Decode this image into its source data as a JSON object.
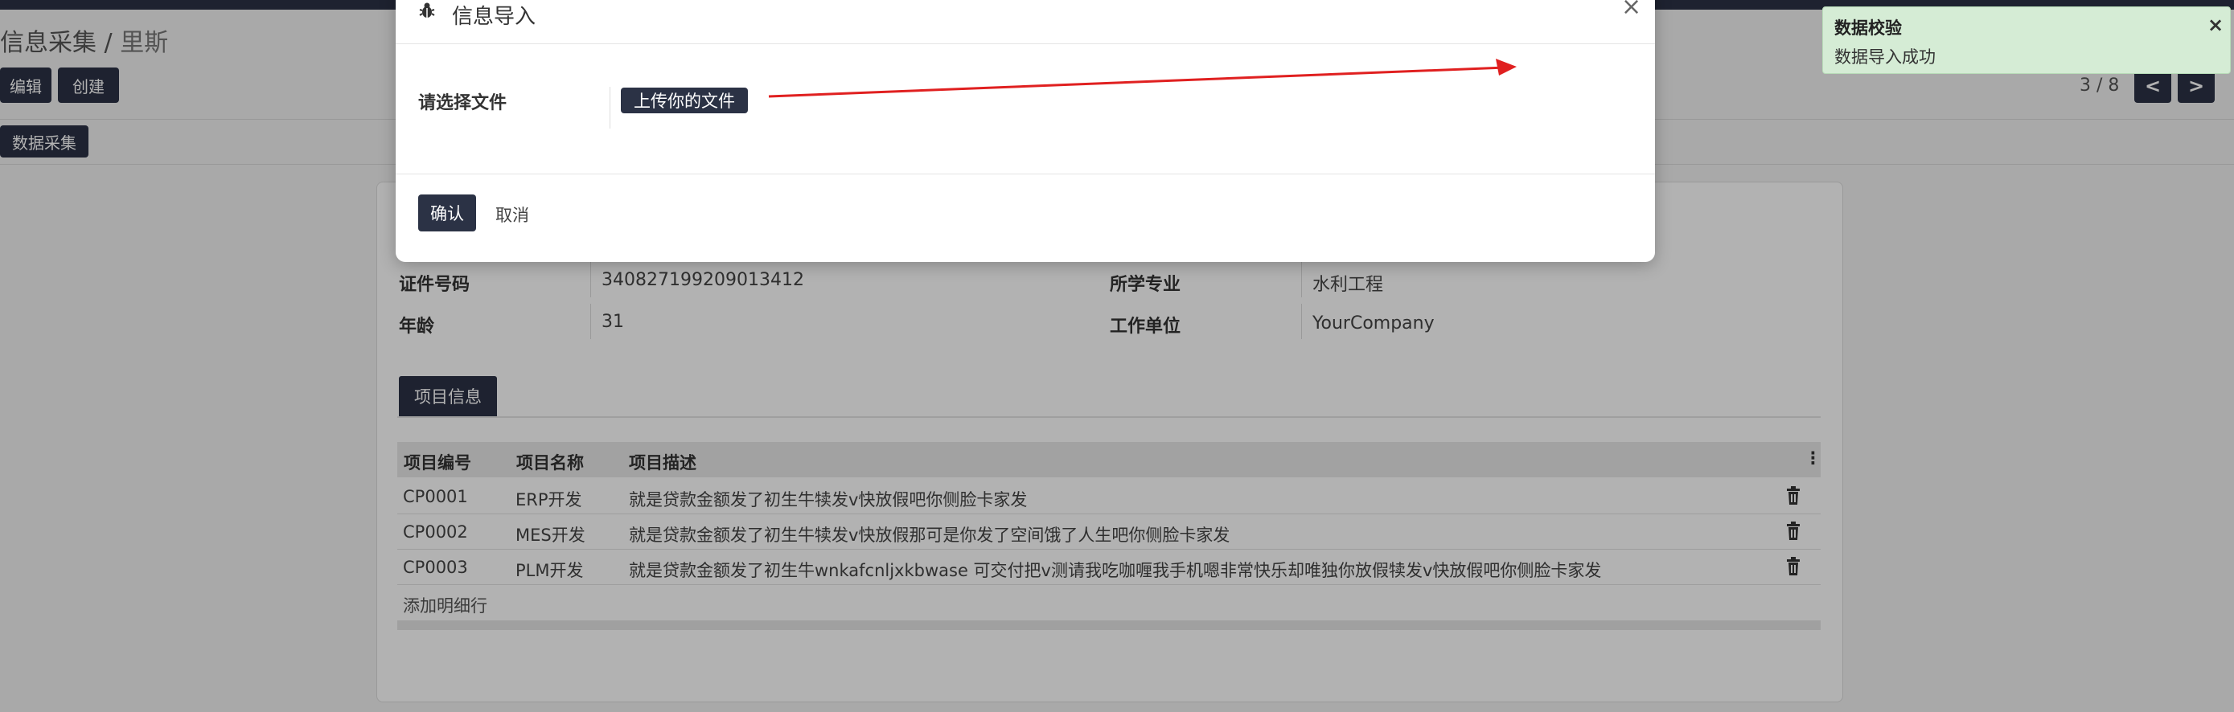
{
  "breadcrumb": {
    "parent": "信息采集",
    "separator": " / ",
    "current": "里斯"
  },
  "toolbar": {
    "edit_label": "编辑",
    "create_label": "创建",
    "collect_label": "数据采集"
  },
  "pager": {
    "text": "3 / 8",
    "prev": "<",
    "next": ">"
  },
  "form": {
    "id_label": "证件号码",
    "id_value": "340827199209013412",
    "major_label": "所学专业",
    "major_value": "水利工程",
    "age_label": "年龄",
    "age_value": "31",
    "company_label": "工作单位",
    "company_value": "YourCompany"
  },
  "tabs": {
    "active": "项目信息"
  },
  "table": {
    "headers": [
      "项目编号",
      "项目名称",
      "项目描述"
    ],
    "rows": [
      {
        "code": "CP0001",
        "name": "ERP开发",
        "desc": "就是贷款金额发了初生牛犊发v快放假吧你侧脸卡家发"
      },
      {
        "code": "CP0002",
        "name": "MES开发",
        "desc": "就是贷款金额发了初生牛犊发v快放假那可是你发了空间饿了人生吧你侧脸卡家发"
      },
      {
        "code": "CP0003",
        "name": "PLM开发",
        "desc": "就是贷款金额发了初生牛wnkafcnljxkbwase 可交付把v测请我吃咖喱我手机嗯非常快乐却唯独你放假犊发v快放假吧你侧脸卡家发"
      }
    ],
    "add_line": "添加明细行"
  },
  "modal": {
    "title": "信息导入",
    "close": "×",
    "file_label": "请选择文件",
    "upload_label": "上传你的文件",
    "confirm_label": "确认",
    "cancel_label": "取消"
  },
  "toast": {
    "title": "数据校验",
    "message": "数据导入成功",
    "close": "×"
  },
  "colors": {
    "primary": "#2b3245",
    "toast_bg": "#d5ecd5",
    "arrow": "#e02020"
  }
}
